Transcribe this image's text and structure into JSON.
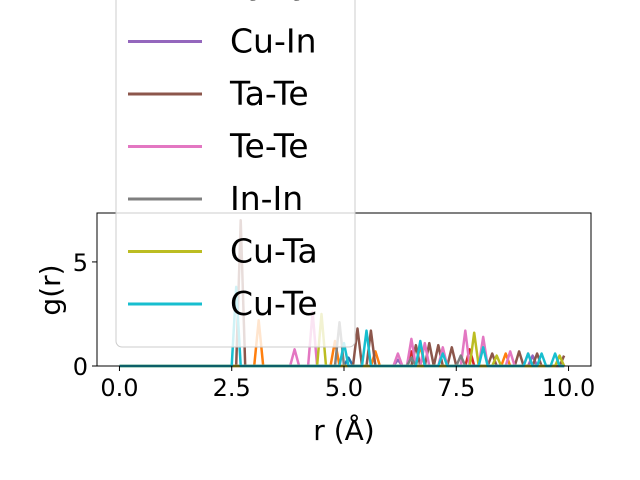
{
  "chart_data": {
    "type": "line",
    "title": "",
    "xlabel": "r (Å)",
    "ylabel": "g(r)",
    "xlim": [
      -0.5,
      10.5
    ],
    "ylim": [
      0,
      7.35
    ],
    "xticks": [
      0.0,
      2.5,
      5.0,
      7.5,
      10.0
    ],
    "xtick_labels": [
      "0.0",
      "2.5",
      "5.0",
      "7.5",
      "10.0"
    ],
    "yticks": [
      0,
      5
    ],
    "ytick_labels": [
      "0",
      "5"
    ],
    "grid": false,
    "legend_placement": "upper-left (overflowing above axes)",
    "series": [
      {
        "name": "",
        "color": "#1f77b4",
        "peaks": [
          [
            5.1,
            0.4
          ]
        ]
      },
      {
        "name": "",
        "color": "#ff7f0e",
        "peaks": [
          [
            3.1,
            2.2
          ],
          [
            4.8,
            1.2
          ],
          [
            5.7,
            0.7
          ],
          [
            6.7,
            1.0
          ],
          [
            8.6,
            0.6
          ]
        ]
      },
      {
        "name": "Ta-Ta",
        "color": "#d62728",
        "peaks": [
          [
            6.5,
            0.7
          ],
          [
            7.8,
            0.8
          ]
        ]
      },
      {
        "name": "Cu-In",
        "color": "#9467bd",
        "peaks": [
          [
            6.2,
            0.3
          ],
          [
            9.2,
            0.5
          ]
        ]
      },
      {
        "name": "Ta-Te",
        "color": "#8c564b",
        "peaks": [
          [
            2.7,
            7.0
          ],
          [
            5.3,
            1.8
          ],
          [
            5.6,
            1.7
          ],
          [
            6.6,
            1.0
          ],
          [
            6.9,
            1.1
          ],
          [
            7.1,
            1.0
          ],
          [
            7.4,
            0.9
          ],
          [
            8.3,
            0.6
          ],
          [
            8.9,
            0.7
          ],
          [
            9.3,
            0.6
          ],
          [
            9.9,
            0.5
          ]
        ]
      },
      {
        "name": "Te-Te",
        "color": "#e377c2",
        "peaks": [
          [
            3.9,
            0.8
          ],
          [
            4.3,
            2.6
          ],
          [
            6.2,
            0.6
          ],
          [
            6.5,
            1.3
          ],
          [
            6.8,
            1.1
          ],
          [
            7.2,
            0.9
          ],
          [
            7.7,
            1.7
          ],
          [
            8.1,
            1.4
          ],
          [
            8.7,
            0.7
          ],
          [
            9.1,
            0.6
          ]
        ]
      },
      {
        "name": "In-In",
        "color": "#7f7f7f",
        "peaks": [
          [
            4.9,
            2.1
          ],
          [
            6.5,
            0.4
          ],
          [
            7.6,
            0.5
          ]
        ]
      },
      {
        "name": "Cu-Ta",
        "color": "#bcbd22",
        "peaks": [
          [
            4.5,
            2.5
          ],
          [
            7.9,
            1.6
          ],
          [
            8.4,
            0.5
          ],
          [
            9.8,
            0.5
          ]
        ]
      },
      {
        "name": "Cu-Te",
        "color": "#17becf",
        "peaks": [
          [
            2.6,
            3.8
          ],
          [
            5.0,
            1.1
          ],
          [
            5.5,
            1.7
          ],
          [
            6.7,
            1.2
          ],
          [
            7.2,
            0.6
          ],
          [
            8.1,
            0.9
          ],
          [
            9.1,
            0.6
          ],
          [
            9.4,
            0.6
          ],
          [
            9.7,
            0.6
          ]
        ]
      }
    ]
  }
}
